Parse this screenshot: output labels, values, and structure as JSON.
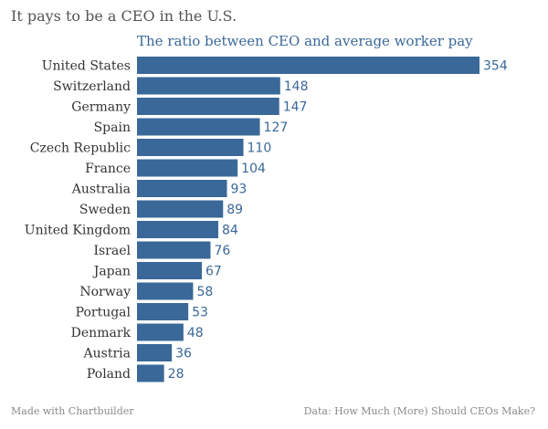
{
  "header": {
    "title": "It pays to be a CEO in the U.S.",
    "subtitle": "The ratio between CEO and average worker pay"
  },
  "footer": {
    "left": "Made with Chartbuilder",
    "right": "Data: How Much (More) Should CEOs Make?"
  },
  "colors": {
    "bar": "#3a6899",
    "category_label": "#333333",
    "value_label": "#3a6899"
  },
  "chart_data": {
    "type": "bar",
    "orientation": "horizontal",
    "title": "It pays to be a CEO in the U.S.",
    "subtitle": "The ratio between CEO and average worker pay",
    "categories": [
      "United States",
      "Switzerland",
      "Germany",
      "Spain",
      "Czech Republic",
      "France",
      "Australia",
      "Sweden",
      "United Kingdom",
      "Israel",
      "Japan",
      "Norway",
      "Portugal",
      "Denmark",
      "Austria",
      "Poland"
    ],
    "values": [
      354,
      148,
      147,
      127,
      110,
      104,
      93,
      89,
      84,
      76,
      67,
      58,
      53,
      48,
      36,
      28
    ],
    "xlim": [
      0,
      354
    ],
    "grid": false,
    "legend": "none"
  }
}
